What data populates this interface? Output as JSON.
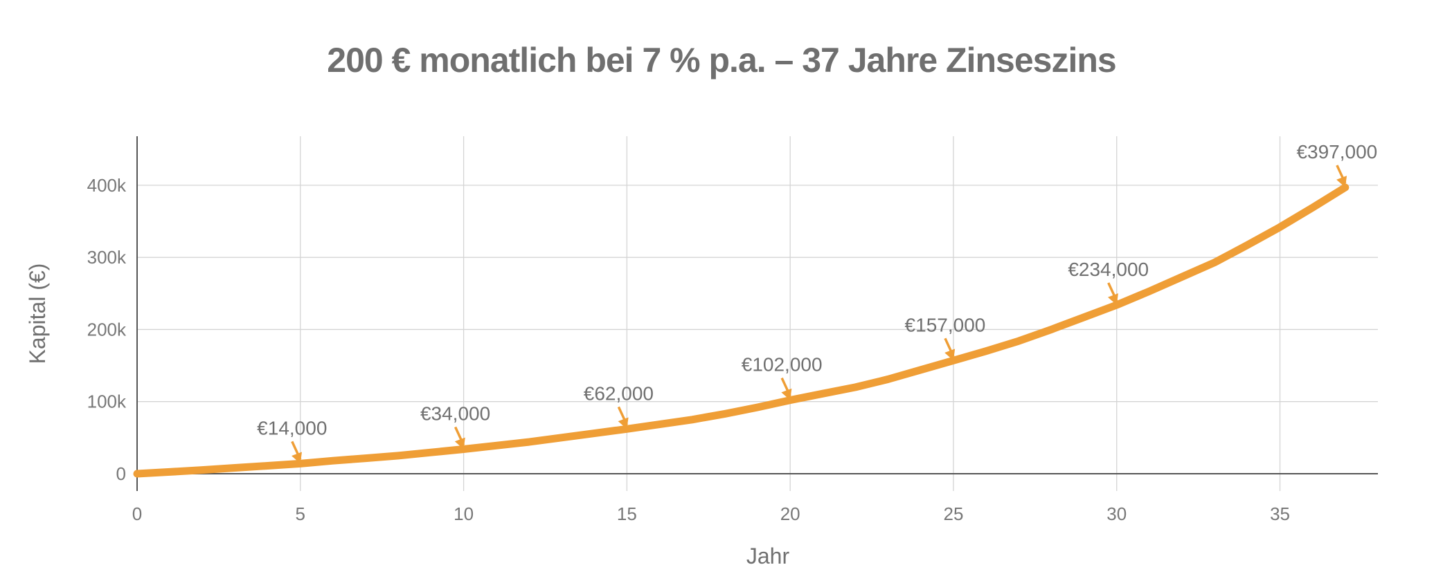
{
  "chart_data": {
    "type": "line",
    "title": "200 € monatlich bei 7 % p.a. – 37 Jahre Zinseszins",
    "xlabel": "Jahr",
    "ylabel": "Kapital (€)",
    "xlim": [
      0,
      38
    ],
    "ylim": [
      -24000,
      468000
    ],
    "x_ticks": [
      0,
      5,
      10,
      15,
      20,
      25,
      30,
      35
    ],
    "x_tick_labels": [
      "0",
      "5",
      "10",
      "15",
      "20",
      "25",
      "30",
      "35"
    ],
    "y_ticks": [
      0,
      100000,
      200000,
      300000,
      400000
    ],
    "y_tick_labels": [
      "0",
      "100k",
      "200k",
      "300k",
      "400k"
    ],
    "grid": true,
    "line_color": "#ef9e36",
    "series": [
      {
        "x": [
          0,
          1,
          2,
          3,
          4,
          5,
          6,
          7,
          8,
          9,
          10,
          11,
          12,
          13,
          14,
          15,
          16,
          17,
          18,
          19,
          20,
          21,
          22,
          23,
          24,
          25,
          26,
          27,
          28,
          29,
          30,
          31,
          32,
          33,
          34,
          35,
          36,
          37
        ],
        "values": [
          0,
          2500,
          5200,
          8100,
          11000,
          14000,
          18000,
          21500,
          25000,
          29500,
          34000,
          39000,
          44000,
          50000,
          56000,
          62000,
          68500,
          75000,
          83000,
          92000,
          102000,
          111000,
          120000,
          131000,
          144000,
          157000,
          170000,
          184000,
          200000,
          217000,
          234000,
          253000,
          273000,
          293000,
          317000,
          342000,
          369000,
          397000
        ]
      }
    ],
    "annotations": [
      {
        "x": 5,
        "y": 14000,
        "text": "€14,000"
      },
      {
        "x": 10,
        "y": 34000,
        "text": "€34,000"
      },
      {
        "x": 15,
        "y": 62000,
        "text": "€62,000"
      },
      {
        "x": 20,
        "y": 102000,
        "text": "€102,000"
      },
      {
        "x": 25,
        "y": 157000,
        "text": "€157,000"
      },
      {
        "x": 30,
        "y": 234000,
        "text": "€234,000"
      },
      {
        "x": 37,
        "y": 397000,
        "text": "€397,000"
      }
    ]
  }
}
